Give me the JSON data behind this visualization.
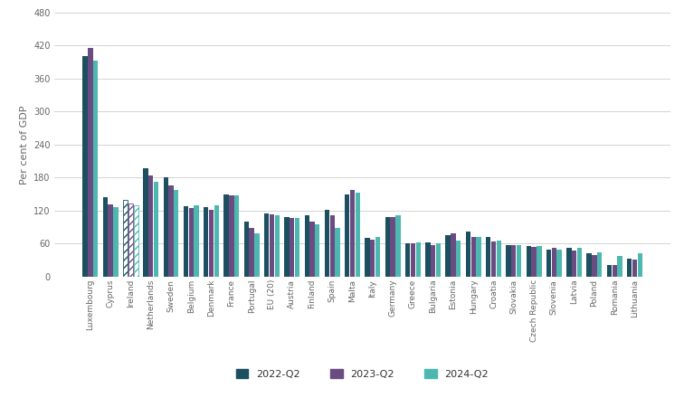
{
  "categories": [
    "Luxembourg",
    "Cyprus",
    "Ireland",
    "Netherlands",
    "Sweden",
    "Belgium",
    "Denmark",
    "France",
    "Portugal",
    "EU (20)",
    "Austria",
    "Finland",
    "Spain",
    "Malta",
    "Italy",
    "Germany",
    "Greece",
    "Bulgaria",
    "Estonia",
    "Hungary",
    "Croatia",
    "Slovakia",
    "Czech Republic",
    "Slovenia",
    "Latvia",
    "Poland",
    "Romania",
    "Lithuania"
  ],
  "series": {
    "2022-Q2": [
      400,
      145,
      140,
      197,
      180,
      128,
      127,
      150,
      100,
      115,
      108,
      112,
      122,
      150,
      70,
      108,
      60,
      62,
      75,
      82,
      72,
      57,
      55,
      50,
      53,
      43,
      22,
      33
    ],
    "2023-Q2": [
      415,
      132,
      133,
      183,
      165,
      125,
      122,
      148,
      88,
      113,
      107,
      100,
      112,
      157,
      68,
      108,
      60,
      58,
      78,
      73,
      64,
      58,
      54,
      52,
      48,
      40,
      22,
      32
    ],
    "2024-Q2": [
      393,
      127,
      130,
      172,
      158,
      130,
      130,
      148,
      78,
      112,
      107,
      96,
      88,
      153,
      72,
      112,
      62,
      60,
      65,
      73,
      65,
      57,
      55,
      50,
      53,
      45,
      38,
      42
    ]
  },
  "ireland_hatched": true,
  "colors": {
    "2022-Q2": "#1c5060",
    "2023-Q2": "#6b4c82",
    "2024-Q2": "#4db8b0"
  },
  "ylabel": "Per cent of GDP",
  "ylim": [
    0,
    480
  ],
  "yticks": [
    0,
    60,
    120,
    180,
    240,
    300,
    360,
    420,
    480
  ],
  "background_color": "#ffffff",
  "grid_color": "#cccccc",
  "bar_width": 0.26,
  "tick_fontsize": 6.5,
  "ylabel_fontsize": 8,
  "legend_fontsize": 8
}
